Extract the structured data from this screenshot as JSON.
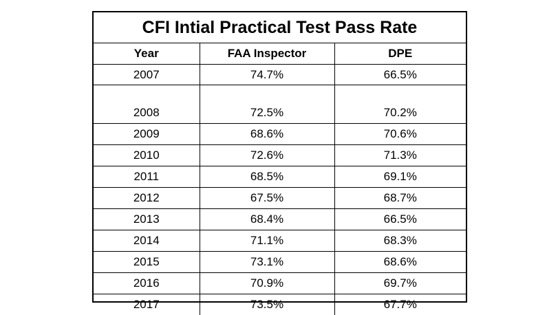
{
  "chart_data": {
    "type": "table",
    "title": "CFI Intial Practical Test Pass Rate",
    "columns": [
      "Year",
      "FAA Inspector",
      "DPE"
    ],
    "rows": [
      [
        "2007",
        "74.7%",
        "66.5%"
      ],
      [
        "2008",
        "72.5%",
        "70.2%"
      ],
      [
        "2009",
        "68.6%",
        "70.6%"
      ],
      [
        "2010",
        "72.6%",
        "71.3%"
      ],
      [
        "2011",
        "68.5%",
        "69.1%"
      ],
      [
        "2012",
        "67.5%",
        "68.7%"
      ],
      [
        "2013",
        "68.4%",
        "66.5%"
      ],
      [
        "2014",
        "71.1%",
        "68.3%"
      ],
      [
        "2015",
        "73.1%",
        "68.6%"
      ],
      [
        "2016",
        "70.9%",
        "69.7%"
      ],
      [
        "2017",
        "73.5%",
        "67.7%"
      ]
    ]
  }
}
